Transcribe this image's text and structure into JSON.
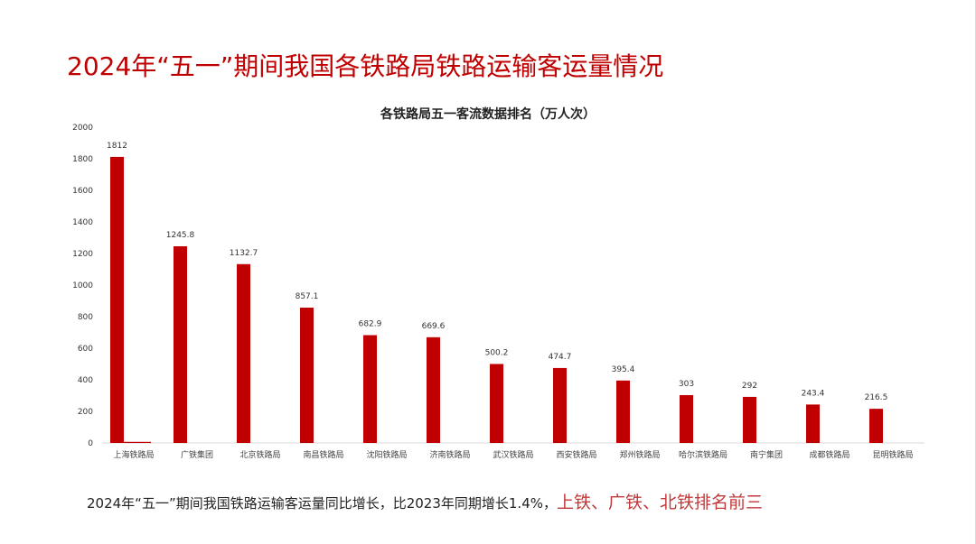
{
  "slide_title": "2024年“五一”期间我国各铁路局铁路运输客运量情况",
  "caption": {
    "text": "2024年“五一”期间我国铁路运输客运量同比增长，比2023年同期增长1.4%，",
    "highlight": "上铁、广铁、北铁排名前三"
  },
  "colors": {
    "bar": "#c00000",
    "title": "#c00000",
    "highlight": "#c0393b",
    "axis": "#d9d9d9"
  },
  "chart_data": {
    "type": "bar",
    "title": "各铁路局五一客流数据排名（万人次）",
    "xlabel": "",
    "ylabel": "",
    "ylim": [
      0,
      2000
    ],
    "yticks": [
      0,
      200,
      400,
      600,
      800,
      1000,
      1200,
      1400,
      1600,
      1800,
      2000
    ],
    "grid": false,
    "categories": [
      "上海铁路局",
      "广铁集团",
      "北京铁路局",
      "南昌铁路局",
      "沈阳铁路局",
      "济南铁路局",
      "武汉铁路局",
      "西安铁路局",
      "郑州铁路局",
      "哈尔滨铁路局",
      "南宁集团",
      "成都铁路局",
      "昆明铁路局"
    ],
    "series": [
      {
        "values": [
          1812,
          1245.8,
          1132.7,
          857.1,
          682.9,
          669.6,
          500.2,
          474.7,
          395.4,
          303,
          292,
          243.4,
          216.5
        ]
      },
      {
        "values": [
          1.4,
          null,
          null,
          null,
          null,
          null,
          null,
          null,
          null,
          null,
          null,
          null,
          null
        ]
      }
    ],
    "data_labels": [
      "1812",
      "1245.8",
      "1132.7",
      "857.1",
      "682.9",
      "669.6",
      "500.2",
      "474.7",
      "395.4",
      "303",
      "292",
      "243.4",
      "216.5"
    ]
  }
}
